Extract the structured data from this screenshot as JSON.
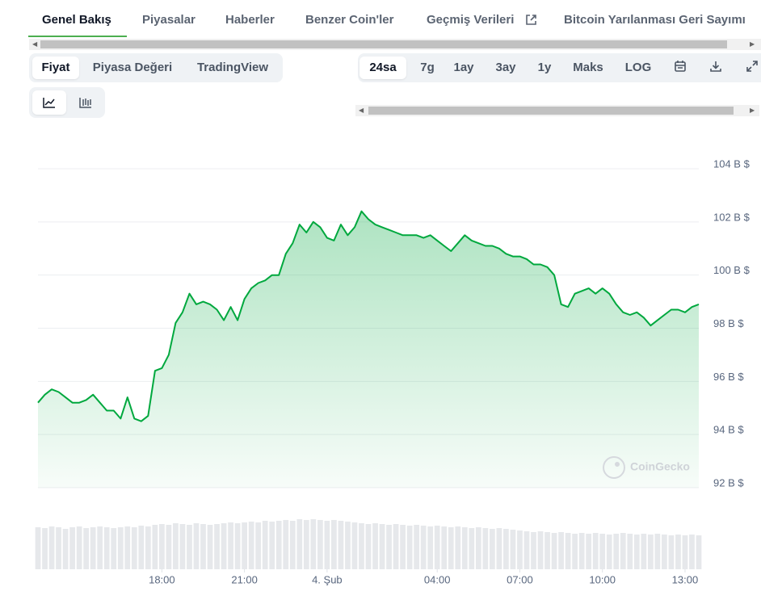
{
  "tabs": [
    "Genel Bakış",
    "Piyasalar",
    "Haberler",
    "Benzer Coin'ler",
    "Geçmiş Verileri",
    "Bitcoin Yarılanması Geri Sayımı"
  ],
  "chart_modes": [
    "Fiyat",
    "Piyasa Değeri",
    "TradingView"
  ],
  "ranges": [
    "24sa",
    "7g",
    "1ay",
    "3ay",
    "1y",
    "Maks",
    "LOG"
  ],
  "watermark": "CoinGecko",
  "chart_data": {
    "type": "line",
    "x": [
      13.5,
      13.75,
      14,
      14.25,
      14.5,
      14.75,
      15,
      15.25,
      15.5,
      15.75,
      16,
      16.25,
      16.5,
      16.75,
      17,
      17.25,
      17.5,
      17.75,
      18,
      18.25,
      18.5,
      18.75,
      19,
      19.25,
      19.5,
      19.75,
      20,
      20.25,
      20.5,
      20.75,
      21,
      21.25,
      21.5,
      21.75,
      22,
      22.25,
      22.5,
      22.75,
      23,
      23.25,
      23.5,
      23.75,
      24,
      24.25,
      24.5,
      24.75,
      25,
      25.25,
      25.5,
      25.75,
      26,
      26.25,
      26.5,
      26.75,
      27,
      27.25,
      27.5,
      27.75,
      28,
      28.25,
      28.5,
      28.75,
      29,
      29.25,
      29.5,
      29.75,
      30,
      30.25,
      30.5,
      30.75,
      31,
      31.25,
      31.5,
      31.75,
      32,
      32.25,
      32.5,
      32.75,
      33,
      33.25,
      33.5,
      33.75,
      34,
      34.25,
      34.5,
      34.75,
      35,
      35.25,
      35.5,
      35.75,
      36,
      36.25,
      36.5,
      36.75,
      37,
      37.25,
      37.5
    ],
    "series": [
      {
        "color": "#00a83e",
        "values": [
          95.2,
          95.5,
          95.7,
          95.6,
          95.4,
          95.2,
          95.2,
          95.3,
          95.5,
          95.2,
          94.9,
          94.9,
          94.6,
          95.4,
          94.6,
          94.5,
          94.7,
          96.4,
          96.5,
          97.0,
          98.2,
          98.6,
          99.3,
          98.9,
          99.0,
          98.9,
          98.7,
          98.3,
          98.8,
          98.3,
          99.1,
          99.5,
          99.7,
          99.8,
          100.0,
          100.0,
          100.8,
          101.2,
          101.9,
          101.6,
          102.0,
          101.8,
          101.4,
          101.3,
          101.9,
          101.5,
          101.8,
          102.4,
          102.1,
          101.9,
          101.8,
          101.7,
          101.6,
          101.5,
          101.5,
          101.5,
          101.4,
          101.5,
          101.3,
          101.1,
          100.9,
          101.2,
          101.5,
          101.3,
          101.2,
          101.1,
          101.1,
          101.0,
          100.8,
          100.7,
          100.7,
          100.6,
          100.4,
          100.4,
          100.3,
          100.0,
          98.9,
          98.8,
          99.3,
          99.4,
          99.5,
          99.3,
          99.5,
          99.3,
          98.9,
          98.6,
          98.5,
          98.6,
          98.4,
          98.1,
          98.3,
          98.5,
          98.7,
          98.7,
          98.6,
          98.8,
          98.9
        ]
      }
    ],
    "volume": [
      52,
      51,
      53,
      52,
      50,
      52,
      53,
      51,
      52,
      53,
      52,
      51,
      52,
      53,
      52,
      54,
      53,
      55,
      56,
      55,
      57,
      56,
      55,
      57,
      56,
      55,
      56,
      57,
      58,
      57,
      58,
      59,
      58,
      60,
      59,
      60,
      61,
      60,
      62,
      61,
      62,
      61,
      60,
      61,
      60,
      59,
      58,
      57,
      56,
      57,
      56,
      55,
      56,
      55,
      54,
      55,
      54,
      53,
      54,
      53,
      52,
      53,
      52,
      51,
      52,
      51,
      50,
      51,
      50,
      49,
      48,
      47,
      46,
      47,
      46,
      45,
      46,
      45,
      44,
      45,
      44,
      45,
      44,
      43,
      44,
      45,
      44,
      43,
      44,
      43,
      44,
      43,
      42,
      43,
      42,
      43,
      42
    ],
    "xlim": [
      13.5,
      37.5
    ],
    "xticks": [
      {
        "value": 18,
        "label": "18:00"
      },
      {
        "value": 21,
        "label": "21:00"
      },
      {
        "value": 24,
        "label": "4. Şub"
      },
      {
        "value": 28,
        "label": "04:00"
      },
      {
        "value": 31,
        "label": "07:00"
      },
      {
        "value": 34,
        "label": "10:00"
      },
      {
        "value": 37,
        "label": "13:00"
      }
    ],
    "ylim": [
      92,
      104
    ],
    "yticks": [
      {
        "value": 92,
        "label": "92 B $"
      },
      {
        "value": 94,
        "label": "94 B $"
      },
      {
        "value": 96,
        "label": "96 B $"
      },
      {
        "value": 98,
        "label": "98 B $"
      },
      {
        "value": 100,
        "label": "100 B $"
      },
      {
        "value": 102,
        "label": "102 B $"
      },
      {
        "value": 104,
        "label": "104 B $"
      }
    ],
    "grid": true
  }
}
